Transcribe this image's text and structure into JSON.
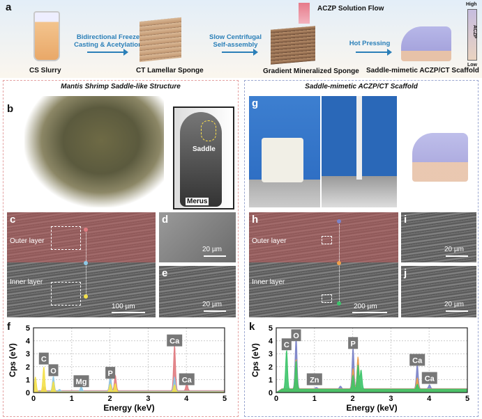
{
  "panel_a": {
    "label": "a",
    "steps": [
      "CS Slurry",
      "CT Lamellar Sponge",
      "Gradient Mineralized Sponge",
      "Saddle-mimetic ACZP/CT Scaffold"
    ],
    "arrows": [
      "Bidirectional Freeze\nCasting & Acetylation",
      "Slow Centrifugal\nSelf-assembly",
      "Hot Pressing"
    ],
    "flow": "ACZP Solution Flow",
    "scale": {
      "high": "High",
      "low": "Low",
      "name": "ACZP"
    }
  },
  "left": {
    "title": "Mantis Shrimp Saddle-like Structure",
    "b": "b",
    "saddle": "Saddle",
    "merus": "Merus",
    "c": "c",
    "outer": "Outer layer",
    "inner": "Inner layer",
    "c_scale": "100 µm",
    "d": "d",
    "d_scale": "20 µm",
    "e": "e",
    "e_scale": "20 µm",
    "f": "f"
  },
  "right": {
    "title": "Saddle-mimetic ACZP/CT Scaffold",
    "g": "g",
    "h": "h",
    "outer": "Outer layer",
    "inner": "Inner layer",
    "h_scale": "200 µm",
    "i": "i",
    "i_scale": "20 µm",
    "j": "j",
    "j_scale": "20 µm",
    "k": "k"
  },
  "colors": {
    "left_border": "#e4a0a0",
    "right_border": "#9aa6d0",
    "outer_tint": "#be5a5a"
  },
  "chart_data": [
    {
      "type": "area",
      "panel": "f",
      "xlabel": "Energy (keV)",
      "ylabel": "Cps (eV)",
      "xlim": [
        0,
        5
      ],
      "ylim": [
        0,
        5
      ],
      "xticks": [
        0,
        1,
        2,
        3,
        4,
        5
      ],
      "yticks": [
        0,
        1,
        2,
        3,
        4,
        5
      ],
      "grid": true,
      "annotations": [
        {
          "text": "C",
          "x": 0.27,
          "y": 2.6
        },
        {
          "text": "O",
          "x": 0.52,
          "y": 1.7
        },
        {
          "text": "Mg",
          "x": 1.25,
          "y": 0.85
        },
        {
          "text": "P",
          "x": 2.01,
          "y": 1.5
        },
        {
          "text": "Ca",
          "x": 3.69,
          "y": 4.0
        },
        {
          "text": "Ca",
          "x": 4.01,
          "y": 1.0
        }
      ],
      "series": [
        {
          "color": "#e07b80",
          "baseline": 0.15,
          "peaks": [
            [
              0.27,
              0.3
            ],
            [
              2.01,
              1.1
            ],
            [
              2.14,
              1.2
            ],
            [
              3.69,
              3.55
            ],
            [
              4.01,
              0.55
            ]
          ]
        },
        {
          "color": "#8ec9e6",
          "baseline": 0.1,
          "peaks": [
            [
              0.52,
              1.15
            ],
            [
              0.68,
              0.15
            ],
            [
              1.25,
              0.35
            ],
            [
              2.01,
              1.2
            ],
            [
              3.69,
              1.1
            ]
          ]
        },
        {
          "color": "#f3e04a",
          "baseline": 0.05,
          "peaks": [
            [
              0.05,
              1.2
            ],
            [
              0.27,
              1.95
            ],
            [
              0.52,
              0.8
            ],
            [
              2.01,
              0.6
            ],
            [
              2.14,
              0.65
            ],
            [
              3.69,
              0.55
            ]
          ]
        }
      ]
    },
    {
      "type": "area",
      "panel": "k",
      "xlabel": "Energy (keV)",
      "ylabel": "Cps (eV)",
      "xlim": [
        0,
        5
      ],
      "ylim": [
        0,
        5
      ],
      "xticks": [
        0,
        1,
        2,
        3,
        4,
        5
      ],
      "yticks": [
        0,
        1,
        2,
        3,
        4,
        5
      ],
      "grid": true,
      "annotations": [
        {
          "text": "C",
          "x": 0.27,
          "y": 3.7
        },
        {
          "text": "O",
          "x": 0.52,
          "y": 4.4
        },
        {
          "text": "Zn",
          "x": 1.0,
          "y": 1.0
        },
        {
          "text": "P",
          "x": 2.01,
          "y": 3.8
        },
        {
          "text": "Ca",
          "x": 3.69,
          "y": 2.5
        },
        {
          "text": "Ca",
          "x": 4.01,
          "y": 1.1
        }
      ],
      "series": [
        {
          "color": "#7b83c8",
          "baseline": 0.3,
          "peaks": [
            [
              0.52,
              4.0
            ],
            [
              1.05,
              0.1
            ],
            [
              1.68,
              0.2
            ],
            [
              2.01,
              3.2
            ],
            [
              2.14,
              2.4
            ],
            [
              3.69,
              1.9
            ],
            [
              4.01,
              0.3
            ]
          ]
        },
        {
          "color": "#f0a04b",
          "baseline": 0.28,
          "peaks": [
            [
              0.52,
              2.3
            ],
            [
              2.01,
              1.6
            ],
            [
              2.14,
              2.5
            ],
            [
              3.69,
              0.85
            ]
          ]
        },
        {
          "color": "#3cc46a",
          "baseline": 0.25,
          "peaks": [
            [
              0.27,
              3.05
            ],
            [
              0.52,
              2.2
            ],
            [
              2.01,
              1.1
            ],
            [
              2.14,
              1.9
            ],
            [
              2.22,
              1.5
            ],
            [
              3.69,
              0.4
            ]
          ]
        }
      ]
    }
  ]
}
